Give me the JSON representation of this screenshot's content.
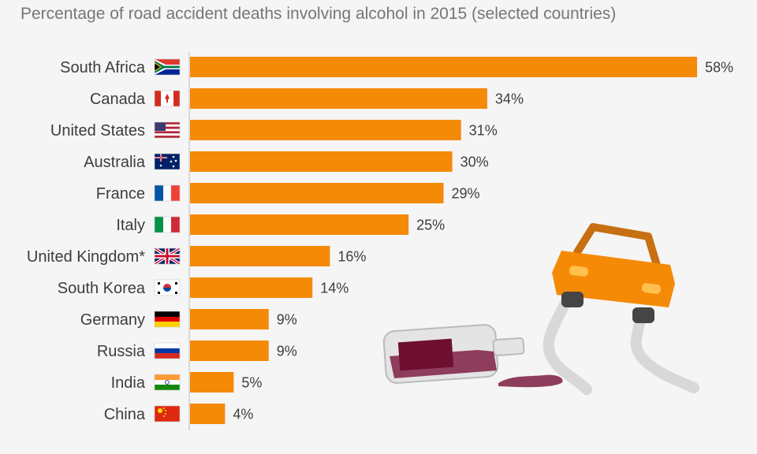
{
  "subtitle": "Percentage of road accident deaths involving alcohol in 2015 (selected countries)",
  "colors": {
    "bar": "#f58a07",
    "background": "#f5f5f5",
    "text": "#3d3d3d"
  },
  "chart_data": {
    "type": "bar",
    "orientation": "horizontal",
    "title": "",
    "subtitle": "Percentage of road accident deaths involving alcohol in 2015 (selected countries)",
    "categories": [
      "South Africa",
      "Canada",
      "United States",
      "Australia",
      "France",
      "Italy",
      "United Kingdom*",
      "South Korea",
      "Germany",
      "Russia",
      "India",
      "China"
    ],
    "values": [
      58,
      34,
      31,
      30,
      29,
      25,
      16,
      14,
      9,
      9,
      5,
      4
    ],
    "value_labels": [
      "58%",
      "34%",
      "31%",
      "30%",
      "29%",
      "25%",
      "16%",
      "14%",
      "9%",
      "9%",
      "5%",
      "4%"
    ],
    "flags": [
      "za-flag-icon",
      "ca-flag-icon",
      "us-flag-icon",
      "au-flag-icon",
      "fr-flag-icon",
      "it-flag-icon",
      "gb-flag-icon",
      "kr-flag-icon",
      "de-flag-icon",
      "ru-flag-icon",
      "in-flag-icon",
      "cn-flag-icon"
    ],
    "xlim": [
      0,
      58
    ],
    "grid": false,
    "decoration": [
      "tilted-car-illustration",
      "spilled-wine-bottle-illustration"
    ]
  }
}
